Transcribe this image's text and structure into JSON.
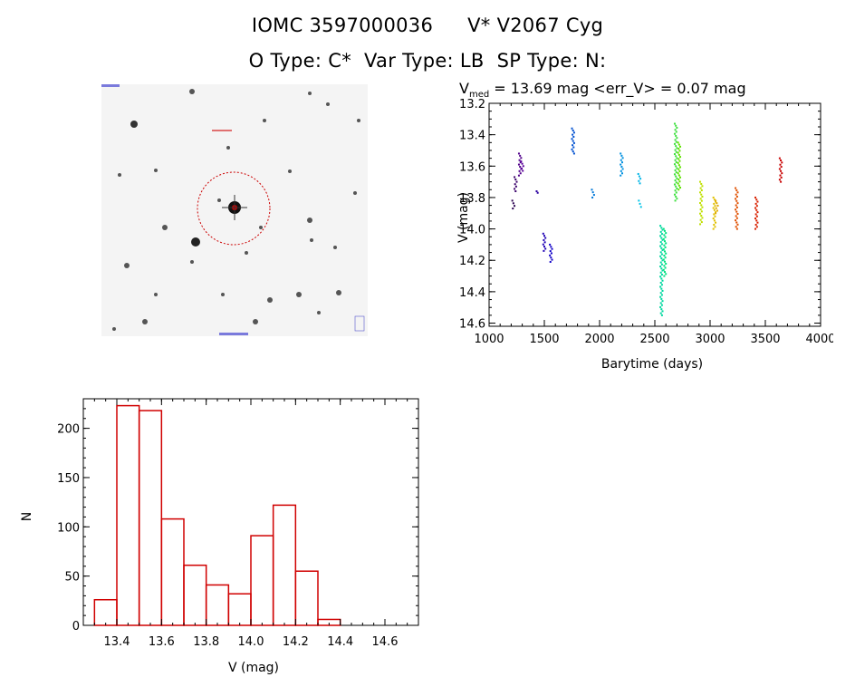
{
  "header": {
    "title_id": "IOMC 3597000036",
    "title_name": "V* V2067 Cyg",
    "otype": "O Type: C*",
    "vartype": "Var Type: LB",
    "sptype": "SP Type: N:"
  },
  "finding_chart": {
    "description": "grayscale star field finding chart with red circle around target",
    "colors": {
      "circle": "#cc0000",
      "background": "#f4f4f4"
    }
  },
  "chart_data": [
    {
      "type": "scatter",
      "title_parts": {
        "v": "V",
        "sub": "med",
        "rest": " = 13.69 mag <err_V> = 0.07 mag"
      },
      "xlabel": "Barytime (days)",
      "ylabel": "V (mag)",
      "xlim": [
        1000,
        4000
      ],
      "ylim": [
        13.2,
        14.62
      ],
      "y_inverted": true,
      "xticks": [
        "1000",
        "1500",
        "2000",
        "2500",
        "3000",
        "3500",
        "4000"
      ],
      "yticks": [
        "13.2",
        "13.4",
        "13.6",
        "13.8",
        "14.0",
        "14.2",
        "14.4",
        "14.6"
      ],
      "groups": [
        {
          "x": 1220,
          "y": [
            13.82,
            13.87
          ],
          "color": "#2a0050"
        },
        {
          "x": 1240,
          "y": [
            13.67,
            13.76
          ],
          "color": "#3a006a"
        },
        {
          "x": 1280,
          "y": [
            13.52,
            13.66
          ],
          "color": "#50008a"
        },
        {
          "x": 1300,
          "y": [
            13.57,
            13.63
          ],
          "color": "#5a009a"
        },
        {
          "x": 1440,
          "y": [
            13.76,
            13.77
          ],
          "color": "#2a00a0"
        },
        {
          "x": 1500,
          "y": [
            14.03,
            14.14
          ],
          "color": "#1e00b4"
        },
        {
          "x": 1560,
          "y": [
            14.1,
            14.21
          ],
          "color": "#1000c8"
        },
        {
          "x": 1760,
          "y": [
            13.36,
            13.52
          ],
          "color": "#0050d0"
        },
        {
          "x": 1940,
          "y": [
            13.75,
            13.8
          ],
          "color": "#0078d8"
        },
        {
          "x": 2200,
          "y": [
            13.52,
            13.66
          ],
          "color": "#0090e0"
        },
        {
          "x": 2360,
          "y": [
            13.65,
            13.71
          ],
          "color": "#00b4e6"
        },
        {
          "x": 2365,
          "y": [
            13.82,
            13.86
          ],
          "color": "#00c4e8"
        },
        {
          "x": 2560,
          "y": [
            13.98,
            14.55
          ],
          "color": "#00d8a0"
        },
        {
          "x": 2590,
          "y": [
            14.0,
            14.3
          ],
          "color": "#00e080"
        },
        {
          "x": 2690,
          "y": [
            13.33,
            13.82
          ],
          "color": "#40e040"
        },
        {
          "x": 2720,
          "y": [
            13.45,
            13.75
          ],
          "color": "#60e000"
        },
        {
          "x": 2920,
          "y": [
            13.7,
            13.97
          ],
          "color": "#c0e000"
        },
        {
          "x": 3040,
          "y": [
            13.8,
            14.0
          ],
          "color": "#e0c000"
        },
        {
          "x": 3060,
          "y": [
            13.82,
            13.9
          ],
          "color": "#e0a800"
        },
        {
          "x": 3240,
          "y": [
            13.74,
            14.0
          ],
          "color": "#e05000"
        },
        {
          "x": 3420,
          "y": [
            13.8,
            14.0
          ],
          "color": "#d82000"
        },
        {
          "x": 3640,
          "y": [
            13.55,
            13.7
          ],
          "color": "#c80000"
        }
      ]
    },
    {
      "type": "bar",
      "xlabel": "V (mag)",
      "ylabel": "N",
      "xlim": [
        13.25,
        14.75
      ],
      "ylim": [
        0,
        230
      ],
      "xticks": [
        "13.4",
        "13.6",
        "13.8",
        "14.0",
        "14.2",
        "14.4",
        "14.6"
      ],
      "yticks": [
        "0",
        "50",
        "100",
        "150",
        "200"
      ],
      "bin_width": 0.1,
      "bin_centers": [
        13.35,
        13.45,
        13.55,
        13.65,
        13.75,
        13.85,
        13.95,
        14.05,
        14.15,
        14.25,
        14.35,
        14.45,
        14.55
      ],
      "values": [
        26,
        223,
        218,
        108,
        61,
        41,
        32,
        91,
        122,
        55,
        6,
        0,
        0
      ],
      "color": "#d00000"
    }
  ]
}
